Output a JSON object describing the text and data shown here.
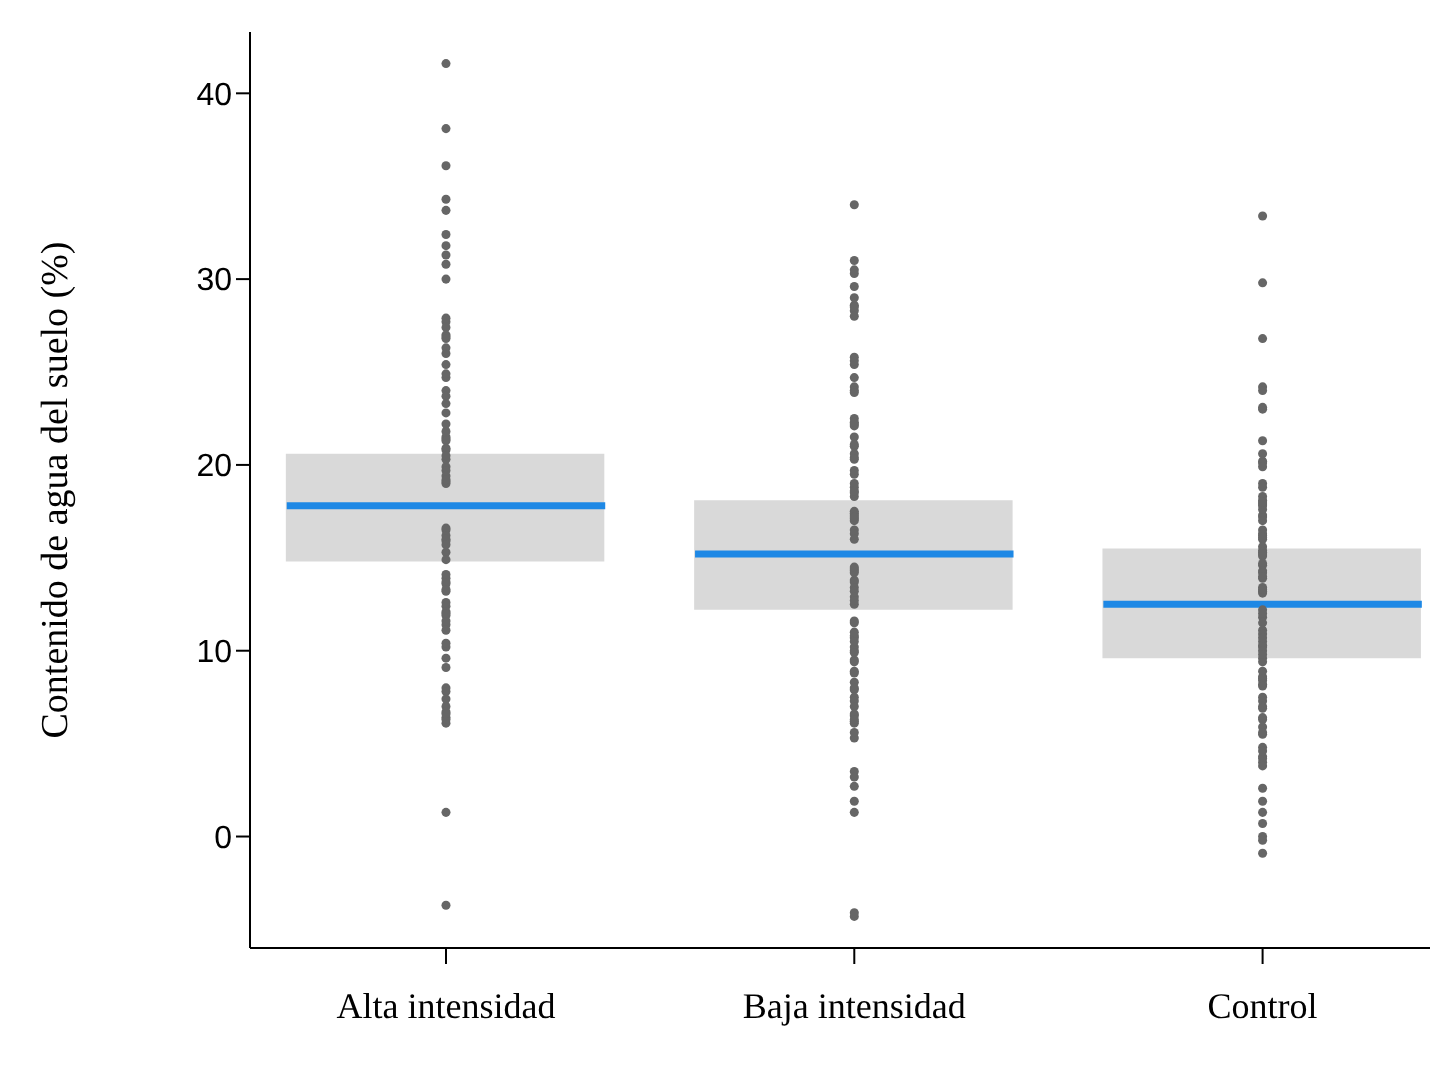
{
  "chart_data": {
    "type": "scatter",
    "ylabel": "Contenido de agua del suelo (%)",
    "categories": [
      "Alta intensidad",
      "Baja intensidad",
      "Control"
    ],
    "ylim": [
      -6,
      43.3
    ],
    "yticks": [
      0,
      10,
      20,
      30,
      40
    ],
    "series": [
      {
        "type": "box",
        "color": "#d9d9d9",
        "boxes": [
          {
            "low": 14.8,
            "q1": 14.8,
            "median": 17.8,
            "q3": 20.6,
            "high": 20.6
          },
          {
            "low": 12.2,
            "q1": 12.2,
            "median": 15.2,
            "q3": 18.1,
            "high": 18.1
          },
          {
            "low": 9.6,
            "q1": 9.6,
            "median": 12.5,
            "q3": 15.5,
            "high": 15.5
          }
        ]
      },
      {
        "color": "#666666",
        "marker": "circle",
        "x": [
          "Alta intensidad",
          "Alta intensidad",
          "Alta intensidad",
          "Alta intensidad",
          "Alta intensidad",
          "Alta intensidad",
          "Alta intensidad",
          "Alta intensidad",
          "Alta intensidad",
          "Alta intensidad",
          "Alta intensidad",
          "Alta intensidad",
          "Alta intensidad",
          "Alta intensidad",
          "Alta intensidad",
          "Alta intensidad",
          "Alta intensidad",
          "Alta intensidad",
          "Alta intensidad",
          "Alta intensidad",
          "Alta intensidad",
          "Alta intensidad",
          "Alta intensidad",
          "Alta intensidad",
          "Alta intensidad",
          "Alta intensidad",
          "Alta intensidad",
          "Alta intensidad",
          "Alta intensidad",
          "Alta intensidad",
          "Alta intensidad",
          "Alta intensidad",
          "Alta intensidad",
          "Alta intensidad",
          "Alta intensidad",
          "Alta intensidad",
          "Alta intensidad",
          "Alta intensidad",
          "Alta intensidad",
          "Alta intensidad",
          "Alta intensidad",
          "Alta intensidad",
          "Alta intensidad",
          "Alta intensidad",
          "Alta intensidad",
          "Alta intensidad",
          "Alta intensidad",
          "Alta intensidad",
          "Alta intensidad",
          "Alta intensidad",
          "Alta intensidad",
          "Alta intensidad",
          "Alta intensidad",
          "Alta intensidad",
          "Alta intensidad",
          "Alta intensidad",
          "Alta intensidad",
          "Alta intensidad",
          "Alta intensidad",
          "Alta intensidad",
          "Alta intensidad",
          "Alta intensidad",
          "Alta intensidad",
          "Alta intensidad",
          "Alta intensidad",
          "Alta intensidad",
          "Alta intensidad",
          "Alta intensidad",
          "Alta intensidad",
          "Alta intensidad",
          "Alta intensidad",
          "Alta intensidad",
          "Alta intensidad",
          "Alta intensidad",
          "Alta intensidad",
          "Alta intensidad",
          "Alta intensidad"
        ],
        "values": [
          41.6,
          38.1,
          36.1,
          31.8,
          34.3,
          33.7,
          32.4,
          31.3,
          30.8,
          30.0,
          27.7,
          26.3,
          27.4,
          27.0,
          27.9,
          26.9,
          26.8,
          26.0,
          25.4,
          24.7,
          24.0,
          24.9,
          23.7,
          23.3,
          22.8,
          22.2,
          21.5,
          21.4,
          21.3,
          21.8,
          20.9,
          20.8,
          19.9,
          19.7,
          20.3,
          20.5,
          19.1,
          19.0,
          19.4,
          19.2,
          16.5,
          16.6,
          16.2,
          15.9,
          16.0,
          15.3,
          14.9,
          15.7,
          13.6,
          13.9,
          13.7,
          13.2,
          13.3,
          14.1,
          12.4,
          11.4,
          11.1,
          11.9,
          11.6,
          12.1,
          12.6,
          12.0,
          10.2,
          10.4,
          9.6,
          9.1,
          8.0,
          7.8,
          7.0,
          6.7,
          6.4,
          6.1,
          6.3,
          7.4,
          6.6,
          1.3,
          -3.7
        ]
      },
      {
        "color": "#666666",
        "marker": "circle",
        "x": [
          "Baja intensidad",
          "Baja intensidad",
          "Baja intensidad",
          "Baja intensidad",
          "Baja intensidad",
          "Baja intensidad",
          "Baja intensidad",
          "Baja intensidad",
          "Baja intensidad",
          "Baja intensidad",
          "Baja intensidad",
          "Baja intensidad",
          "Baja intensidad",
          "Baja intensidad",
          "Baja intensidad",
          "Baja intensidad",
          "Baja intensidad",
          "Baja intensidad",
          "Baja intensidad",
          "Baja intensidad",
          "Baja intensidad",
          "Baja intensidad",
          "Baja intensidad",
          "Baja intensidad",
          "Baja intensidad",
          "Baja intensidad",
          "Baja intensidad",
          "Baja intensidad",
          "Baja intensidad",
          "Baja intensidad",
          "Baja intensidad",
          "Baja intensidad",
          "Baja intensidad",
          "Baja intensidad",
          "Baja intensidad",
          "Baja intensidad",
          "Baja intensidad",
          "Baja intensidad",
          "Baja intensidad",
          "Baja intensidad",
          "Baja intensidad",
          "Baja intensidad",
          "Baja intensidad",
          "Baja intensidad",
          "Baja intensidad",
          "Baja intensidad",
          "Baja intensidad",
          "Baja intensidad",
          "Baja intensidad",
          "Baja intensidad",
          "Baja intensidad",
          "Baja intensidad",
          "Baja intensidad",
          "Baja intensidad",
          "Baja intensidad",
          "Baja intensidad",
          "Baja intensidad",
          "Baja intensidad",
          "Baja intensidad",
          "Baja intensidad",
          "Baja intensidad",
          "Baja intensidad",
          "Baja intensidad",
          "Baja intensidad",
          "Baja intensidad",
          "Baja intensidad",
          "Baja intensidad",
          "Baja intensidad",
          "Baja intensidad",
          "Baja intensidad",
          "Baja intensidad",
          "Baja intensidad",
          "Baja intensidad",
          "Baja intensidad",
          "Baja intensidad",
          "Baja intensidad",
          "Baja intensidad",
          "Baja intensidad",
          "Baja intensidad",
          "Baja intensidad",
          "Baja intensidad",
          "Baja intensidad",
          "Baja intensidad",
          "Baja intensidad",
          "Baja intensidad",
          "Baja intensidad",
          "Baja intensidad"
        ],
        "values": [
          34.0,
          31.0,
          30.3,
          28.6,
          28.3,
          29.0,
          28.5,
          28.0,
          30.5,
          29.6,
          25.4,
          25.6,
          25.8,
          24.2,
          24.7,
          24.0,
          23.9,
          22.5,
          22.2,
          22.1,
          21.5,
          22.3,
          20.4,
          20.6,
          20.3,
          21.0,
          21.1,
          18.8,
          19.0,
          19.5,
          19.7,
          18.3,
          18.5,
          18.6,
          17.5,
          17.1,
          17.3,
          17.0,
          17.4,
          17.2,
          16.5,
          16.3,
          16.0,
          14.3,
          13.8,
          14.4,
          13.7,
          13.4,
          14.2,
          14.5,
          13.2,
          12.9,
          12.5,
          12.7,
          11.5,
          11.6,
          10.7,
          10.8,
          10.2,
          10.5,
          11.0,
          10.0,
          9.5,
          9.9,
          8.8,
          8.9,
          9.4,
          8.3,
          7.9,
          8.0,
          7.5,
          7.3,
          7.0,
          6.1,
          5.3,
          6.5,
          6.2,
          6.6,
          5.6,
          6.3,
          3.5,
          3.2,
          2.7,
          1.3,
          1.9,
          -4.3,
          -4.1
        ]
      },
      {
        "color": "#666666",
        "marker": "circle",
        "x": [
          "Control",
          "Control",
          "Control",
          "Control",
          "Control",
          "Control",
          "Control",
          "Control",
          "Control",
          "Control",
          "Control",
          "Control",
          "Control",
          "Control",
          "Control",
          "Control",
          "Control",
          "Control",
          "Control",
          "Control",
          "Control",
          "Control",
          "Control",
          "Control",
          "Control",
          "Control",
          "Control",
          "Control",
          "Control",
          "Control",
          "Control",
          "Control",
          "Control",
          "Control",
          "Control",
          "Control",
          "Control",
          "Control",
          "Control",
          "Control",
          "Control",
          "Control",
          "Control",
          "Control",
          "Control",
          "Control",
          "Control",
          "Control",
          "Control",
          "Control",
          "Control",
          "Control",
          "Control",
          "Control",
          "Control",
          "Control",
          "Control",
          "Control",
          "Control",
          "Control",
          "Control",
          "Control",
          "Control",
          "Control",
          "Control",
          "Control",
          "Control",
          "Control",
          "Control",
          "Control",
          "Control",
          "Control",
          "Control",
          "Control",
          "Control",
          "Control",
          "Control",
          "Control",
          "Control",
          "Control",
          "Control",
          "Control",
          "Control",
          "Control",
          "Control"
        ],
        "values": [
          33.4,
          29.8,
          26.8,
          24.2,
          24.0,
          23.1,
          23.0,
          21.3,
          20.6,
          20.2,
          20.1,
          19.9,
          19.0,
          18.8,
          17.8,
          18.1,
          17.3,
          17.2,
          17.6,
          17.0,
          17.9,
          18.3,
          18.0,
          16.2,
          16.0,
          16.5,
          16.3,
          16.1,
          15.4,
          15.6,
          15.3,
          15.1,
          14.6,
          15.2,
          14.7,
          13.9,
          14.3,
          14.2,
          14.0,
          13.2,
          13.4,
          13.1,
          13.3,
          12.2,
          11.8,
          11.5,
          12.0,
          11.1,
          10.9,
          10.5,
          10.2,
          10.3,
          10.0,
          10.7,
          9.6,
          9.4,
          9.8,
          8.6,
          8.9,
          8.4,
          8.5,
          8.2,
          8.1,
          7.3,
          7.5,
          7.0,
          6.9,
          6.3,
          6.4,
          5.9,
          5.5,
          5.6,
          4.8,
          4.2,
          4.0,
          4.3,
          4.6,
          3.8,
          2.6,
          1.9,
          1.3,
          0.7,
          0.0,
          -0.2,
          -0.9
        ]
      }
    ]
  }
}
